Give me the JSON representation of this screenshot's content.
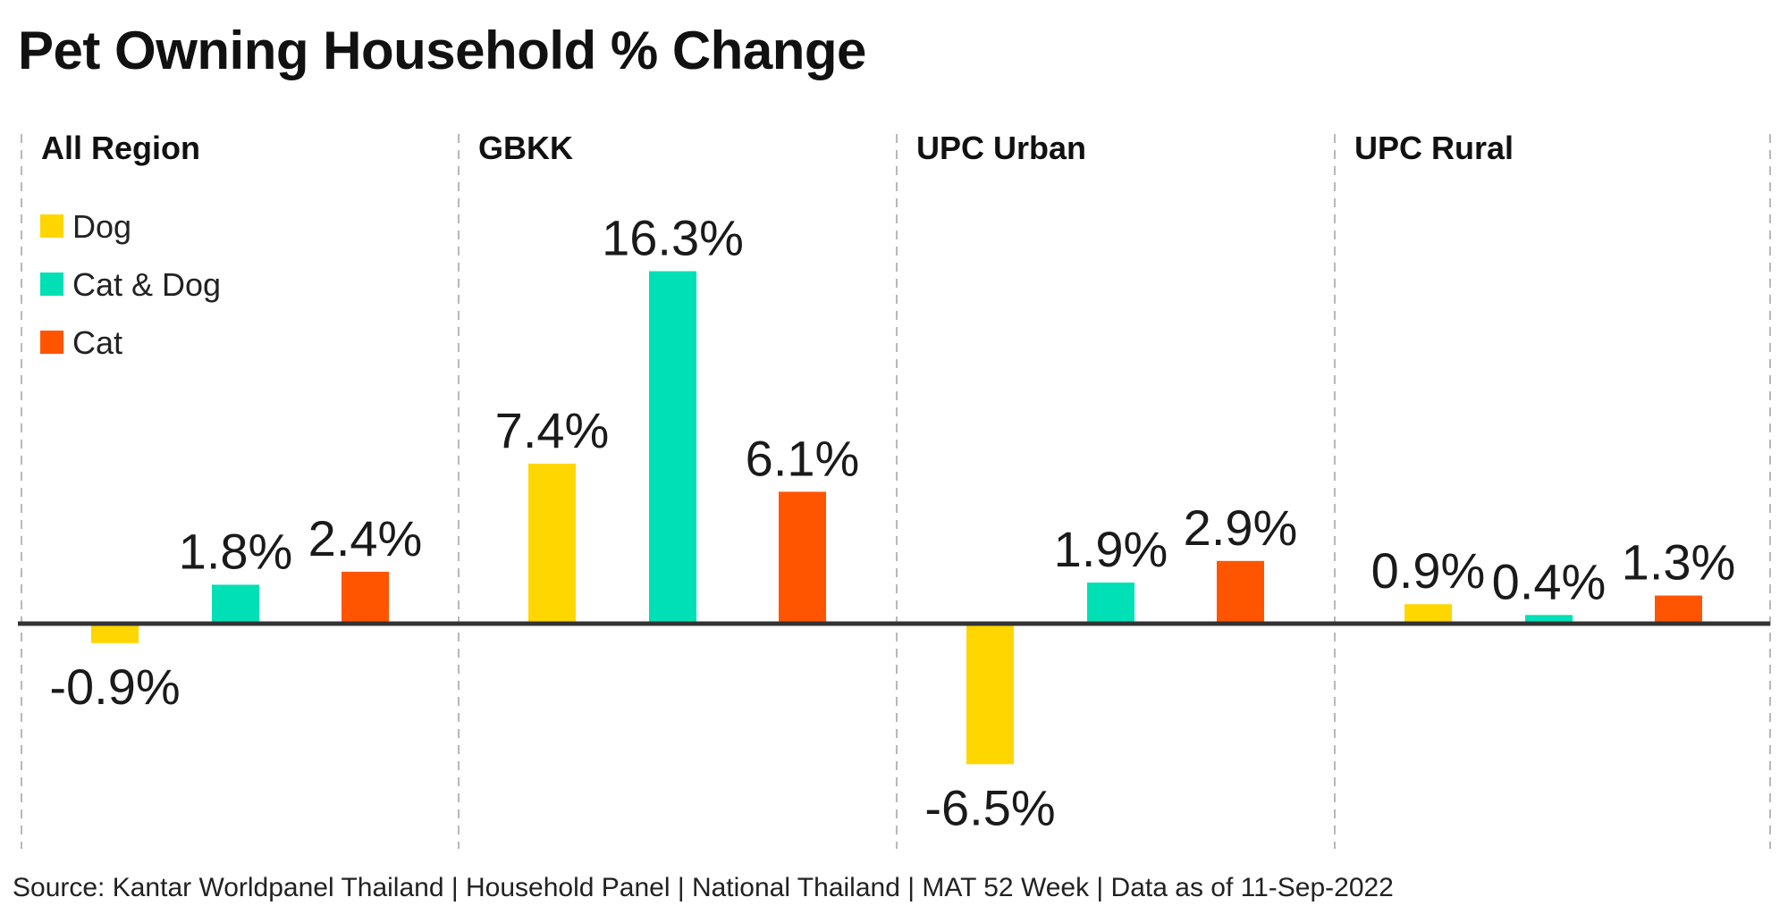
{
  "title": "Pet Owning Household % Change",
  "source": "Source: Kantar Worldpanel Thailand | Household Panel | National Thailand | MAT 52 Week | Data as of 11-Sep-2022",
  "chart_data": {
    "type": "bar",
    "title": "Pet Owning Household % Change",
    "xlabel": "",
    "ylabel": "",
    "categories": [
      "All Region",
      "GBKK",
      "UPC Urban",
      "UPC Rural"
    ],
    "series": [
      {
        "name": "Dog",
        "color": "#FFD600",
        "values": [
          -0.9,
          7.4,
          -6.5,
          0.9
        ],
        "labels": [
          "-0.9%",
          "7.4%",
          "-6.5%",
          "0.9%"
        ]
      },
      {
        "name": "Cat & Dog",
        "color": "#00E0B6",
        "values": [
          1.8,
          16.3,
          1.9,
          0.4
        ],
        "labels": [
          "1.8%",
          "16.3%",
          "1.9%",
          "0.4%"
        ]
      },
      {
        "name": "Cat",
        "color": "#FF5500",
        "values": [
          2.4,
          6.1,
          2.9,
          1.3
        ],
        "labels": [
          "2.4%",
          "6.1%",
          "2.9%",
          "1.3%"
        ]
      }
    ],
    "legend": "top-left",
    "grid": false,
    "panel_dividers": "dashed",
    "ylim": [
      -10.5,
      17.5
    ]
  }
}
